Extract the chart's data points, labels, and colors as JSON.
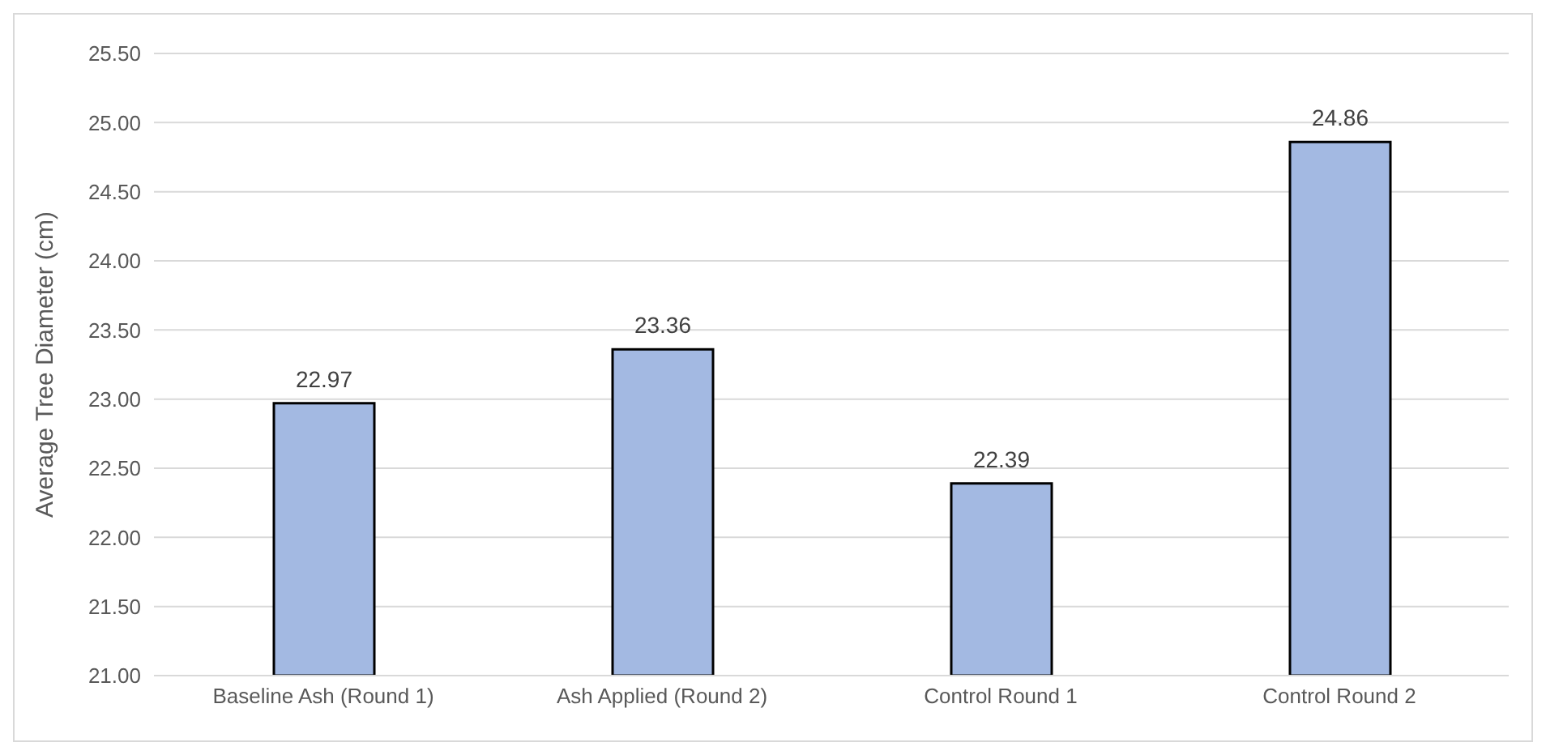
{
  "chart_data": {
    "type": "bar",
    "ylabel": "Average Tree Diameter (cm)",
    "categories": [
      "Baseline Ash (Round 1)",
      "Ash Applied (Round 2)",
      "Control Round 1",
      "Control Round 2"
    ],
    "values": [
      22.97,
      23.36,
      22.39,
      24.86
    ],
    "color": "#a3b9e2",
    "ylim": [
      21,
      25.5
    ],
    "yticks": [
      {
        "value": 21,
        "label": "21.00"
      },
      {
        "value": 21.5,
        "label": "21.50"
      },
      {
        "value": 22,
        "label": "22.00"
      },
      {
        "value": 22.5,
        "label": "22.50"
      },
      {
        "value": 23,
        "label": "23.00"
      },
      {
        "value": 23.5,
        "label": "23.50"
      },
      {
        "value": 24,
        "label": "24.00"
      },
      {
        "value": 24.5,
        "label": "24.50"
      },
      {
        "value": 25,
        "label": "25.00"
      },
      {
        "value": 25.5,
        "label": "25.50"
      }
    ],
    "grid": "y",
    "data_labels": true
  }
}
